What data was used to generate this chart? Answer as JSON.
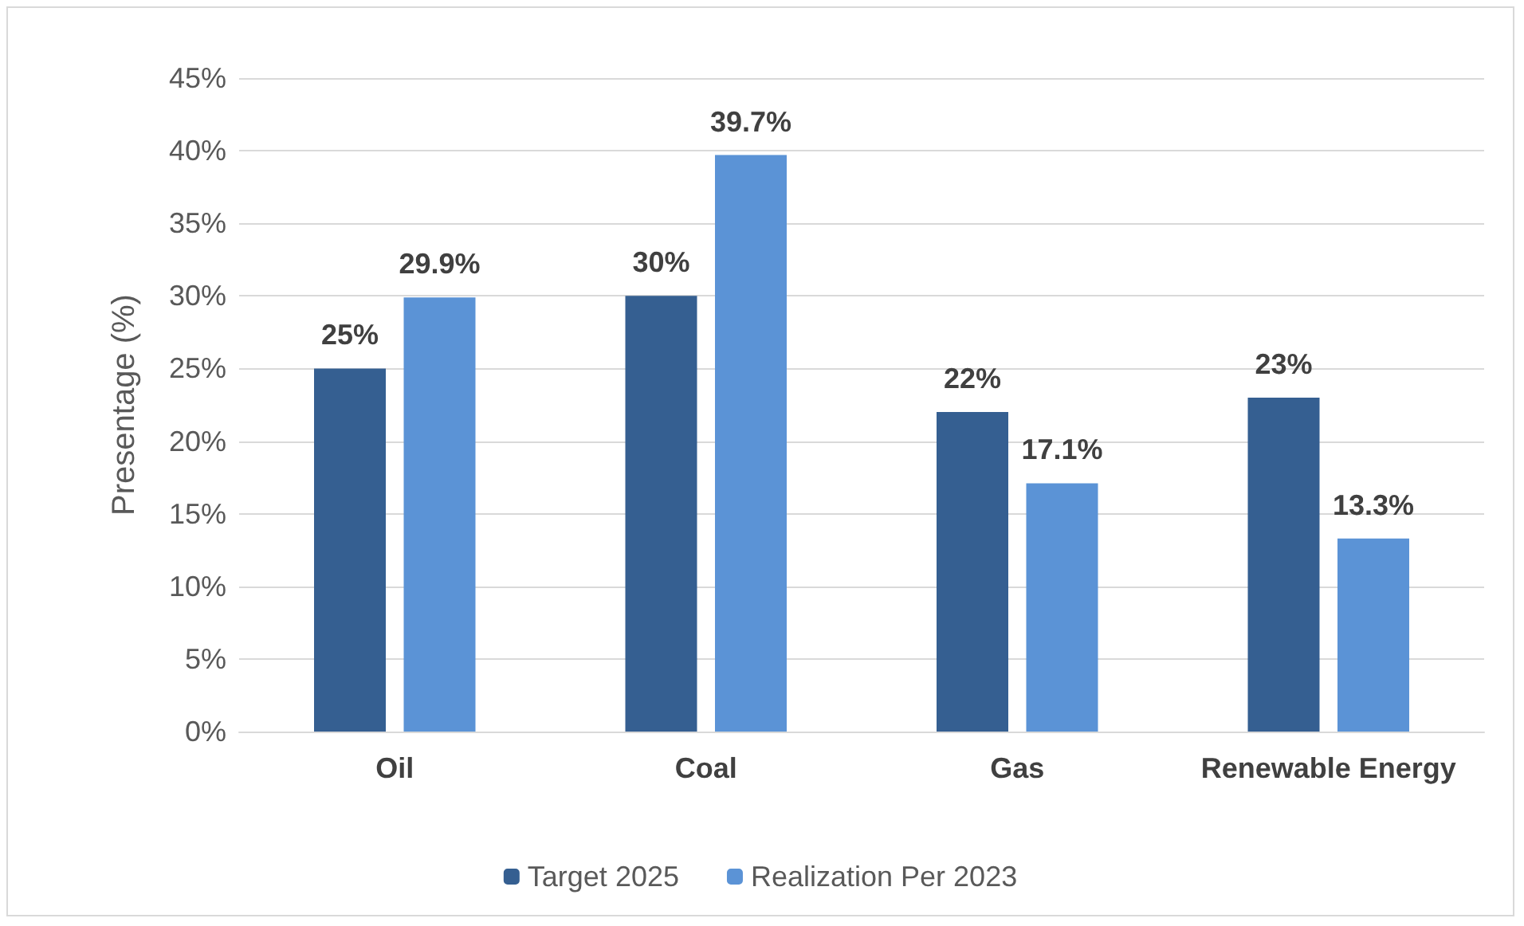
{
  "chart_data": {
    "type": "bar",
    "ylabel": "Presentage (%)",
    "categories": [
      "Oil",
      "Coal",
      "Gas",
      "Renewable Energy"
    ],
    "series": [
      {
        "name": "Target 2025",
        "color": "#355f91",
        "values": [
          25,
          30,
          22,
          23
        ],
        "value_labels": [
          "25%",
          "30%",
          "22%",
          "23%"
        ]
      },
      {
        "name": "Realization Per 2023",
        "color": "#5b93d6",
        "values": [
          29.9,
          39.7,
          17.1,
          13.3
        ],
        "value_labels": [
          "29.9%",
          "39.7%",
          "17.1%",
          "13.3%"
        ]
      }
    ],
    "ylim": [
      0,
      45
    ],
    "yticks": [
      {
        "value": 0,
        "label": "0%"
      },
      {
        "value": 5,
        "label": "5%"
      },
      {
        "value": 10,
        "label": "10%"
      },
      {
        "value": 15,
        "label": "15%"
      },
      {
        "value": 20,
        "label": "20%"
      },
      {
        "value": 25,
        "label": "25%"
      },
      {
        "value": 30,
        "label": "30%"
      },
      {
        "value": 35,
        "label": "35%"
      },
      {
        "value": 40,
        "label": "40%"
      },
      {
        "value": 45,
        "label": "45%"
      }
    ],
    "grid": "y",
    "legend": "bottom"
  }
}
